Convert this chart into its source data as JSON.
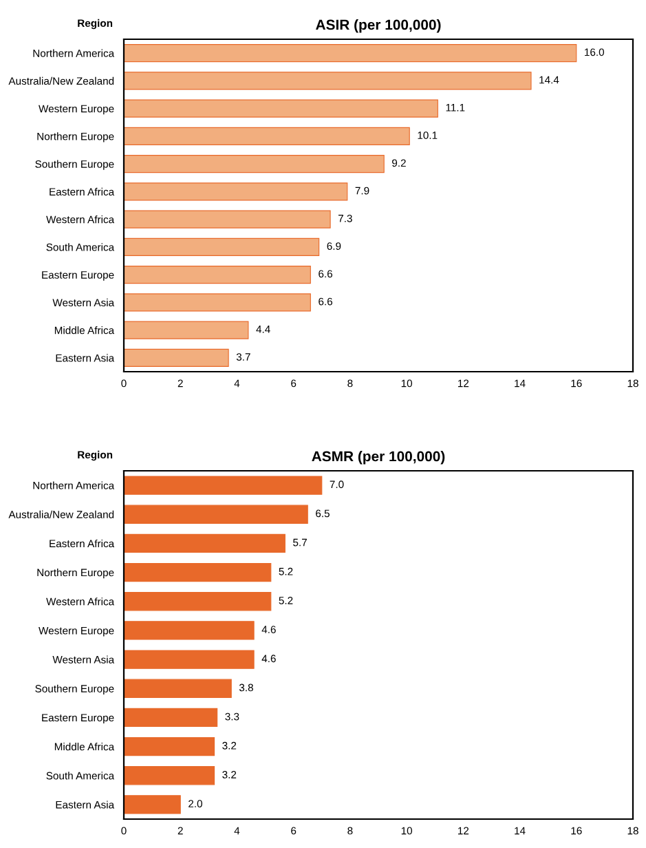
{
  "chart_data": [
    {
      "type": "bar",
      "orientation": "horizontal",
      "title": "ASIR (per 100,000)",
      "ylabel": "Region",
      "categories": [
        "Northern America",
        "Australia/New Zealand",
        "Western Europe",
        "Northern Europe",
        "Southern Europe",
        "Eastern Africa",
        "Western Africa",
        "South America",
        "Eastern Europe",
        "Western Asia",
        "Middle Africa",
        "Eastern Asia"
      ],
      "values": [
        16.0,
        14.4,
        11.1,
        10.1,
        9.2,
        7.9,
        7.3,
        6.9,
        6.6,
        6.6,
        4.4,
        3.7
      ],
      "value_labels": [
        "16.0",
        "14.4",
        "11.1",
        "10.1",
        "9.2",
        "7.9",
        "7.3",
        "6.9",
        "6.6",
        "6.6",
        "4.4",
        "3.7"
      ],
      "color": "#f2ae7e",
      "xlim": [
        0,
        18
      ],
      "xticks": [
        0,
        2,
        4,
        6,
        8,
        10,
        12,
        14,
        16,
        18
      ],
      "grid": false,
      "legend": false
    },
    {
      "type": "bar",
      "orientation": "horizontal",
      "title": "ASMR (per 100,000)",
      "ylabel": "Region",
      "categories": [
        "Northern America",
        "Australia/New Zealand",
        "Eastern Africa",
        "Northern Europe",
        "Western Africa",
        "Western Europe",
        "Western Asia",
        "Southern Europe",
        "Eastern Europe",
        "Middle Africa",
        "South America",
        "Eastern Asia"
      ],
      "values": [
        7.0,
        6.5,
        5.7,
        5.2,
        5.2,
        4.6,
        4.6,
        3.8,
        3.3,
        3.2,
        3.2,
        2.0
      ],
      "value_labels": [
        "7.0",
        "6.5",
        "5.7",
        "5.2",
        "5.2",
        "4.6",
        "4.6",
        "3.8",
        "3.3",
        "3.2",
        "3.2",
        "2.0"
      ],
      "color": "#e8692a",
      "xlim": [
        0,
        18
      ],
      "xticks": [
        0,
        2,
        4,
        6,
        8,
        10,
        12,
        14,
        16,
        18
      ],
      "grid": false,
      "legend": false
    }
  ]
}
